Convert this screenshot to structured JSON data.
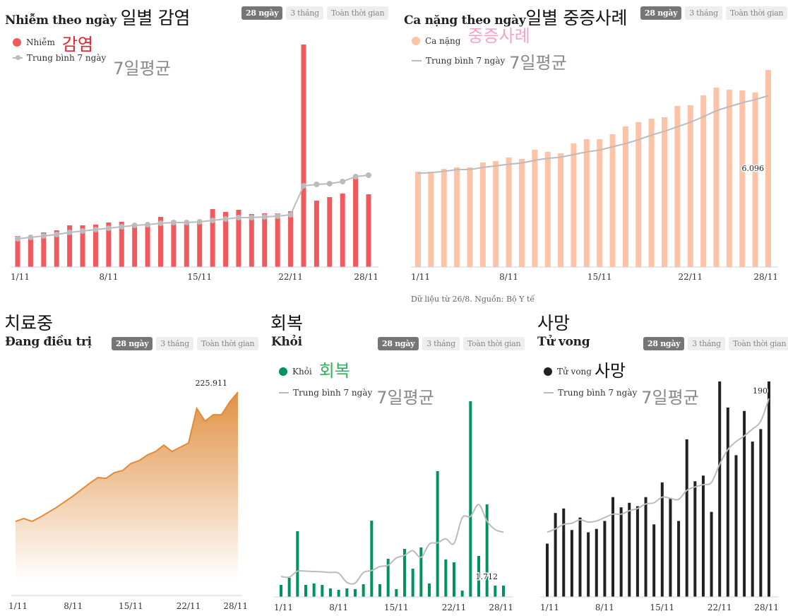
{
  "buttons": {
    "b28": "28 ngày",
    "b3m": "3 tháng",
    "ball": "Toàn thời gian"
  },
  "avg_label": "Trung bình 7 ngày",
  "avg_label_ko": "7일평균",
  "source_note": "Dữ liệu từ 26/8. Nguồn: Bộ Y tế",
  "panels": {
    "infections": {
      "title": "Nhiễm theo ngày",
      "title_ko": "일별 감염",
      "legend_label": "Nhiễm",
      "legend_ko": "감염",
      "color": "#f0595d",
      "ko_color": "#e8202a"
    },
    "severe": {
      "title": "Ca nặng theo ngày",
      "title_ko": "일별 중증사례",
      "legend_label": "Ca nặng",
      "legend_ko": "중증사례",
      "color": "#fdc3a7",
      "ko_color": "#f4a3c8",
      "last_value_label": "6.096"
    },
    "treating": {
      "title": "Đang điều trị",
      "title_ko": "치료중",
      "color": "#e08b3a",
      "last_value_label": "225.911"
    },
    "recovered": {
      "title": "Khỏi",
      "title_ko": "회복",
      "legend_label": "Khỏi",
      "legend_ko": "회복",
      "color": "#00935f",
      "ko_color": "#2eb25b",
      "last_value_label": "1.712"
    },
    "deaths": {
      "title": "Tử vong",
      "title_ko": "사망",
      "legend_label": "Tử vong",
      "legend_ko": "사망",
      "color": "#222222",
      "last_value_label": "190"
    }
  },
  "chart_data": [
    {
      "type": "bar",
      "title": "Nhiễm theo ngày",
      "x": [
        "1/11",
        "2/11",
        "3/11",
        "4/11",
        "5/11",
        "6/11",
        "7/11",
        "8/11",
        "9/11",
        "10/11",
        "11/11",
        "12/11",
        "13/11",
        "14/11",
        "15/11",
        "16/11",
        "17/11",
        "18/11",
        "19/11",
        "20/11",
        "21/11",
        "22/11",
        "23/11",
        "24/11",
        "25/11",
        "26/11",
        "27/11",
        "28/11"
      ],
      "xticks": [
        "1/11",
        "8/11",
        "15/11",
        "22/11",
        "28/11"
      ],
      "series": [
        {
          "name": "Nhiễm",
          "values": [
            44,
            41,
            49,
            52,
            59,
            59,
            60,
            63,
            64,
            60,
            60,
            71,
            66,
            65,
            65,
            82,
            78,
            81,
            75,
            76,
            76,
            79,
            315,
            94,
            99,
            104,
            129,
            103
          ]
        },
        {
          "name": "Trung bình 7 ngày",
          "type": "line",
          "values": [
            40,
            42,
            44,
            46,
            49,
            51,
            53,
            55,
            57,
            59,
            60,
            62,
            63,
            63,
            64,
            66,
            68,
            70,
            70,
            71,
            72,
            74,
            115,
            117,
            118,
            121,
            128,
            130
          ]
        }
      ],
      "ylabel": "",
      "xlabel": "",
      "grid": false,
      "legend_position": "top-left"
    },
    {
      "type": "bar",
      "title": "Ca nặng theo ngày",
      "x": [
        "1/11",
        "2/11",
        "3/11",
        "4/11",
        "5/11",
        "6/11",
        "7/11",
        "8/11",
        "9/11",
        "10/11",
        "11/11",
        "12/11",
        "13/11",
        "14/11",
        "15/11",
        "16/11",
        "17/11",
        "18/11",
        "19/11",
        "20/11",
        "21/11",
        "22/11",
        "23/11",
        "24/11",
        "25/11",
        "26/11",
        "27/11",
        "28/11"
      ],
      "xticks": [
        "1/11",
        "8/11",
        "15/11",
        "22/11",
        "28/11"
      ],
      "series": [
        {
          "name": "Ca nặng",
          "values": [
            2950,
            2950,
            3037,
            3081,
            3081,
            3234,
            3278,
            3387,
            3343,
            3627,
            3562,
            3518,
            3824,
            3955,
            3955,
            4108,
            4348,
            4479,
            4589,
            4632,
            4982,
            5004,
            5310,
            5550,
            5485,
            5463,
            5397,
            6096
          ]
        },
        {
          "name": "Trung bình 7 ngày",
          "type": "line",
          "values": [
            2900,
            2920,
            2960,
            3010,
            3020,
            3080,
            3130,
            3180,
            3220,
            3300,
            3360,
            3400,
            3480,
            3560,
            3620,
            3720,
            3820,
            3940,
            4080,
            4200,
            4340,
            4480,
            4650,
            4830,
            4960,
            5080,
            5180,
            5300
          ]
        }
      ],
      "annotations": [
        {
          "x": "28/11",
          "text": "6.096"
        }
      ],
      "grid": false,
      "legend_position": "top-left"
    },
    {
      "type": "area",
      "title": "Đang điều trị",
      "x": [
        "1/11",
        "2/11",
        "3/11",
        "4/11",
        "5/11",
        "6/11",
        "7/11",
        "8/11",
        "9/11",
        "10/11",
        "11/11",
        "12/11",
        "13/11",
        "14/11",
        "15/11",
        "16/11",
        "17/11",
        "18/11",
        "19/11",
        "20/11",
        "21/11",
        "22/11",
        "23/11",
        "24/11",
        "25/11",
        "26/11",
        "27/11",
        "28/11"
      ],
      "xticks": [
        "1/11",
        "8/11",
        "15/11",
        "22/11",
        "28/11"
      ],
      "series": [
        {
          "name": "Đang điều trị",
          "values": [
            82320,
            85456,
            82320,
            87024,
            92512,
            98000,
            104272,
            110544,
            117600,
            124656,
            130928,
            130144,
            136416,
            138768,
            146608,
            149744,
            156016,
            159936,
            166992,
            159936,
            164640,
            169344,
            207760,
            193648,
            200704,
            200704,
            214816,
            225911
          ]
        }
      ],
      "annotations": [
        {
          "x": "28/11",
          "text": "225.911"
        }
      ],
      "grid": false
    },
    {
      "type": "bar",
      "title": "Khỏi",
      "x": [
        "1/11",
        "2/11",
        "3/11",
        "4/11",
        "5/11",
        "6/11",
        "7/11",
        "8/11",
        "9/11",
        "10/11",
        "11/11",
        "12/11",
        "13/11",
        "14/11",
        "15/11",
        "16/11",
        "17/11",
        "18/11",
        "19/11",
        "20/11",
        "21/11",
        "22/11",
        "23/11",
        "24/11",
        "25/11",
        "26/11",
        "27/11",
        "28/11"
      ],
      "xticks": [
        "1/11",
        "8/11",
        "15/11",
        "22/11",
        "28/11"
      ],
      "series": [
        {
          "name": "Khỏi",
          "values": [
            1819,
            2889,
            9951,
            1819,
            2033,
            1819,
            1284,
            1070,
            1284,
            1177,
            1926,
            11556,
            1926,
            5778,
            1177,
            7276,
            4280,
            7490,
            2033,
            19046,
            5671,
            5243,
            963,
            29639,
            6206,
            14017,
            1712,
            1712
          ]
        },
        {
          "name": "Trung bình 7 ngày",
          "type": "line",
          "values": [
            3100,
            3000,
            3900,
            3900,
            3850,
            3800,
            3700,
            3600,
            2200,
            2100,
            3700,
            4000,
            4600,
            4800,
            5900,
            6300,
            7000,
            6000,
            8000,
            8200,
            8800,
            8100,
            12000,
            12200,
            14000,
            11500,
            10200,
            9800
          ]
        }
      ],
      "annotations": [
        {
          "x": "28/11",
          "text": "1.712"
        }
      ],
      "grid": false,
      "legend_position": "top-left"
    },
    {
      "type": "bar",
      "title": "Tử vong",
      "x": [
        "1/11",
        "2/11",
        "3/11",
        "4/11",
        "5/11",
        "6/11",
        "7/11",
        "8/11",
        "9/11",
        "10/11",
        "11/11",
        "12/11",
        "13/11",
        "14/11",
        "15/11",
        "16/11",
        "17/11",
        "18/11",
        "19/11",
        "20/11",
        "21/11",
        "22/11",
        "23/11",
        "24/11",
        "25/11",
        "26/11",
        "27/11",
        "28/11"
      ],
      "xticks": [
        "1/11",
        "8/11",
        "15/11",
        "22/11",
        "28/11"
      ],
      "series": [
        {
          "name": "Tử vong",
          "values": [
            47,
            74,
            78,
            59,
            70,
            57,
            60,
            67,
            88,
            79,
            83,
            80,
            88,
            64,
            101,
            87,
            67,
            139,
            102,
            107,
            75,
            190,
            167,
            125,
            164,
            137,
            148,
            190
          ]
        },
        {
          "name": "Trung bình 7 ngày",
          "type": "line",
          "values": [
            57,
            60,
            64,
            65,
            68,
            66,
            67,
            70,
            73,
            73,
            76,
            78,
            82,
            83,
            88,
            87,
            86,
            94,
            97,
            99,
            101,
            117,
            130,
            137,
            142,
            148,
            155,
            175
          ]
        }
      ],
      "annotations": [
        {
          "x": "28/11",
          "text": "190"
        }
      ],
      "grid": false,
      "legend_position": "top-left"
    }
  ]
}
